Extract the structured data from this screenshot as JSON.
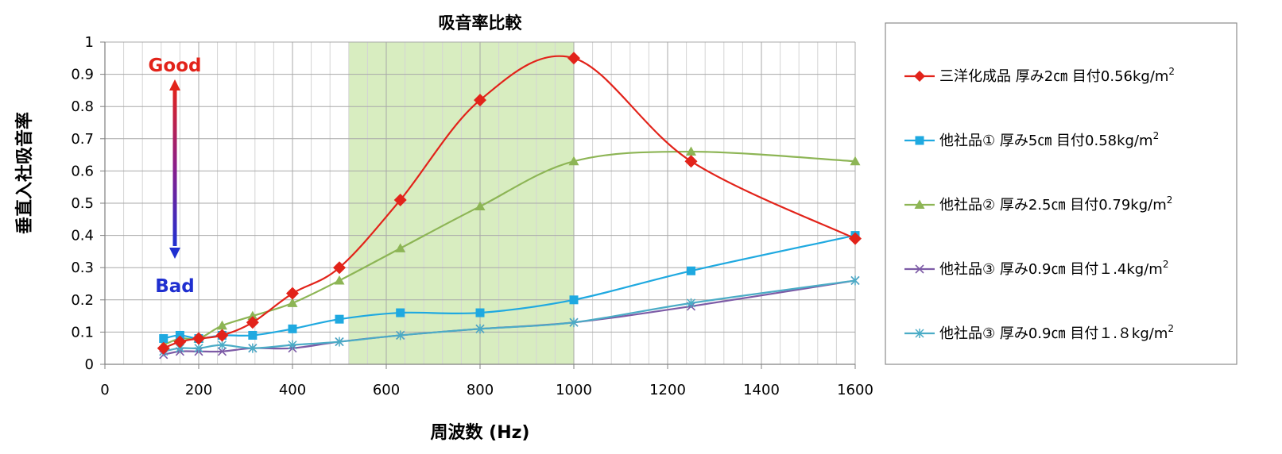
{
  "chart_data": {
    "type": "line",
    "title": "吸音率比較",
    "xlabel": "周波数 (Hz)",
    "ylabel": "垂直入社吸音率",
    "xlim": [
      0,
      1600
    ],
    "ylim": [
      0,
      1
    ],
    "x_ticks": [
      0,
      200,
      400,
      600,
      800,
      1000,
      1200,
      1400,
      1600
    ],
    "x_tick_labels": [
      "0",
      "200",
      "400",
      "600",
      "800",
      "1000",
      "1200",
      "1400",
      "1600"
    ],
    "y_ticks": [
      0,
      0.1,
      0.2,
      0.3,
      0.4,
      0.5,
      0.6,
      0.7,
      0.8,
      0.9,
      1
    ],
    "y_tick_labels": [
      "0",
      "0.1",
      "0.2",
      "0.3",
      "0.4",
      "0.5",
      "0.6",
      "0.7",
      "0.8",
      "0.9",
      "1"
    ],
    "grid": true,
    "legend_position": "right",
    "highlight_band": {
      "x_from": 520,
      "x_to": 1000,
      "color": "#d8edc0"
    },
    "annotations": {
      "good": "Good",
      "bad": "Bad"
    },
    "series": [
      {
        "name": "三洋化成品 厚み2cm 目付0.56kg/m²",
        "legend_text": "三洋化成品 厚み2㎝ 目付0.56kg/m",
        "sup": "2",
        "color": "#e2231a",
        "marker": "diamond",
        "x": [
          125,
          160,
          200,
          250,
          315,
          400,
          500,
          630,
          800,
          1000,
          1250,
          1600
        ],
        "y": [
          0.05,
          0.07,
          0.08,
          0.09,
          0.13,
          0.22,
          0.3,
          0.51,
          0.82,
          0.95,
          0.63,
          0.39
        ]
      },
      {
        "name": "他社品① 厚み5cm 目付0.58kg/m²",
        "legend_text": "他社品① 厚み5㎝ 目付0.58kg/m",
        "sup": "2",
        "color": "#1fa9e0",
        "marker": "square",
        "x": [
          125,
          160,
          200,
          250,
          315,
          400,
          500,
          630,
          800,
          1000,
          1250,
          1600
        ],
        "y": [
          0.08,
          0.09,
          0.08,
          0.09,
          0.09,
          0.11,
          0.14,
          0.16,
          0.16,
          0.2,
          0.29,
          0.4
        ]
      },
      {
        "name": "他社品② 厚み2.5cm 目付0.79kg/m²",
        "legend_text": "他社品② 厚み2.5㎝ 目付0.79kg/m",
        "sup": "2",
        "color": "#8db555",
        "marker": "triangle",
        "x": [
          125,
          160,
          200,
          250,
          315,
          400,
          500,
          630,
          800,
          1000,
          1250,
          1600
        ],
        "y": [
          0.06,
          0.08,
          0.08,
          0.12,
          0.15,
          0.19,
          0.26,
          0.36,
          0.49,
          0.63,
          0.66,
          0.63
        ]
      },
      {
        "name": "他社品③ 厚み0.9cm 目付１.4kg/m²",
        "legend_text": "他社品③ 厚み0.9㎝ 目付１.4kg/m",
        "sup": "2",
        "color": "#7d5ba6",
        "marker": "x",
        "x": [
          125,
          160,
          200,
          250,
          315,
          400,
          500,
          630,
          800,
          1000,
          1250,
          1600
        ],
        "y": [
          0.03,
          0.04,
          0.04,
          0.04,
          0.05,
          0.05,
          0.07,
          0.09,
          0.11,
          0.13,
          0.18,
          0.26
        ]
      },
      {
        "name": "他社品③ 厚み0.9cm 目付１.８kg/m²",
        "legend_text": "他社品③ 厚み0.9㎝ 目付１.８kg/m",
        "sup": "2",
        "color": "#4bacc6",
        "marker": "star",
        "x": [
          125,
          160,
          200,
          250,
          315,
          400,
          500,
          630,
          800,
          1000,
          1250,
          1600
        ],
        "y": [
          0.04,
          0.05,
          0.05,
          0.06,
          0.05,
          0.06,
          0.07,
          0.09,
          0.11,
          0.13,
          0.19,
          0.26
        ]
      }
    ]
  }
}
